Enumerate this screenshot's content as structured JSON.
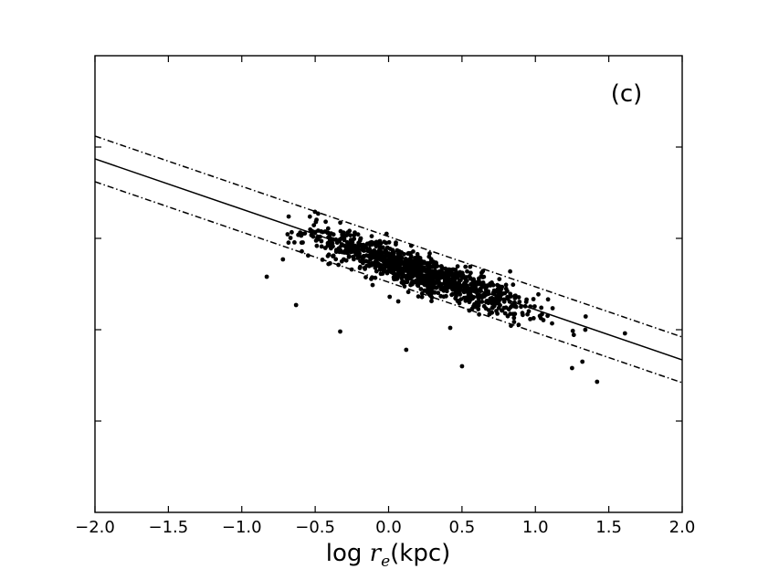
{
  "chart_data": {
    "type": "scatter",
    "panel_label": "(c)",
    "xlabel": {
      "prefix": "log ",
      "var": "r",
      "sub": "e",
      "suffix": "(kpc)"
    },
    "ylabel": "",
    "xlim": [
      -2.0,
      2.0
    ],
    "ylim": [
      0,
      5
    ],
    "x_ticks": [
      {
        "value": -2.0,
        "label": "−2.0"
      },
      {
        "value": -1.5,
        "label": "−1.5"
      },
      {
        "value": -1.0,
        "label": "−1.0"
      },
      {
        "value": -0.5,
        "label": "−0.5"
      },
      {
        "value": 0.0,
        "label": "0.0"
      },
      {
        "value": 0.5,
        "label": "0.5"
      },
      {
        "value": 1.0,
        "label": "1.0"
      },
      {
        "value": 1.5,
        "label": "1.5"
      },
      {
        "value": 2.0,
        "label": "2.0"
      }
    ],
    "y_ticks": [
      1,
      2,
      3,
      4
    ],
    "grid": false,
    "fit_line": {
      "slope": -0.55,
      "intercept": 2.77,
      "style": "solid"
    },
    "scatter_band": {
      "offset": 0.25,
      "style": "dash-dot"
    },
    "scatter_summary": {
      "approx_points": 1100,
      "x_range": [
        -0.7,
        1.4
      ],
      "scatter_sd": 0.1
    },
    "outliers": [
      {
        "x": -0.83,
        "y": 2.58
      },
      {
        "x": -0.63,
        "y": 2.27
      },
      {
        "x": -0.72,
        "y": 2.77
      },
      {
        "x": -0.33,
        "y": 1.98
      },
      {
        "x": -0.1,
        "y": 2.81
      },
      {
        "x": 0.38,
        "y": 2.58
      },
      {
        "x": 0.42,
        "y": 2.02
      },
      {
        "x": 0.12,
        "y": 1.78
      },
      {
        "x": 0.5,
        "y": 1.6
      },
      {
        "x": 1.25,
        "y": 1.58
      },
      {
        "x": 1.32,
        "y": 1.65
      },
      {
        "x": 1.42,
        "y": 1.43
      },
      {
        "x": 1.61,
        "y": 1.96
      }
    ]
  }
}
